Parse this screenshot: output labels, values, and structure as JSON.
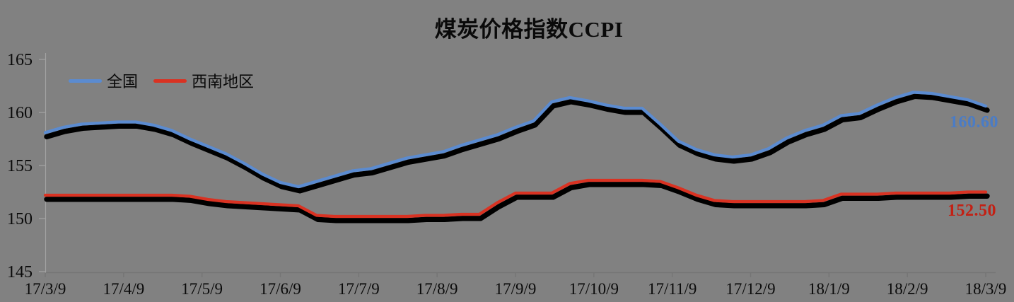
{
  "chart_data": {
    "type": "line",
    "title": "煤炭价格指数CCPI",
    "background_color": "#818181",
    "legend_position": "top-left",
    "axis": {
      "y_min": 145,
      "y_max": 165,
      "y_ticks": [
        165,
        160,
        155,
        150,
        145
      ],
      "x_tick_labels": [
        "17/3/9",
        "17/4/9",
        "17/5/9",
        "17/6/9",
        "17/7/9",
        "17/8/9",
        "17/9/9",
        "17/10/9",
        "17/11/9",
        "17/12/9",
        "18/1/9",
        "18/2/9",
        "18/3/9"
      ],
      "grid": false,
      "y_axis_color": "#a3a3a3",
      "x_axis_color": "#757575",
      "tick_label_color": "#0a0a0a"
    },
    "line_shadow": {
      "color": "#000000",
      "dx": 2,
      "dy": 5.8
    },
    "series": [
      {
        "name": "全国",
        "color": "#5b8bd0",
        "label_color": "#4a7cc6",
        "end_label": "160.60",
        "values": [
          158.1,
          158.6,
          158.9,
          159.0,
          159.1,
          159.1,
          158.8,
          158.3,
          157.5,
          156.8,
          156.1,
          155.2,
          154.2,
          153.4,
          153.0,
          153.5,
          154.0,
          154.5,
          154.7,
          155.2,
          155.7,
          156.0,
          156.3,
          156.9,
          157.4,
          157.9,
          158.6,
          159.2,
          161.0,
          161.4,
          161.1,
          160.7,
          160.4,
          160.4,
          158.9,
          157.3,
          156.5,
          156.0,
          155.8,
          156.0,
          156.6,
          157.6,
          158.3,
          158.8,
          159.7,
          159.9,
          160.7,
          161.4,
          161.9,
          161.8,
          161.5,
          161.2,
          160.6
        ]
      },
      {
        "name": "西南地区",
        "color": "#d93222",
        "label_color": "#c32014",
        "end_label": "152.50",
        "values": [
          152.2,
          152.2,
          152.2,
          152.2,
          152.2,
          152.2,
          152.2,
          152.2,
          152.1,
          151.8,
          151.6,
          151.5,
          151.4,
          151.3,
          151.2,
          150.3,
          150.2,
          150.2,
          150.2,
          150.2,
          150.2,
          150.3,
          150.3,
          150.4,
          150.4,
          151.5,
          152.4,
          152.4,
          152.4,
          153.3,
          153.6,
          153.6,
          153.6,
          153.6,
          153.5,
          152.9,
          152.2,
          151.7,
          151.6,
          151.6,
          151.6,
          151.6,
          151.6,
          151.7,
          152.3,
          152.3,
          152.3,
          152.4,
          152.4,
          152.4,
          152.4,
          152.5,
          152.5
        ]
      }
    ]
  }
}
